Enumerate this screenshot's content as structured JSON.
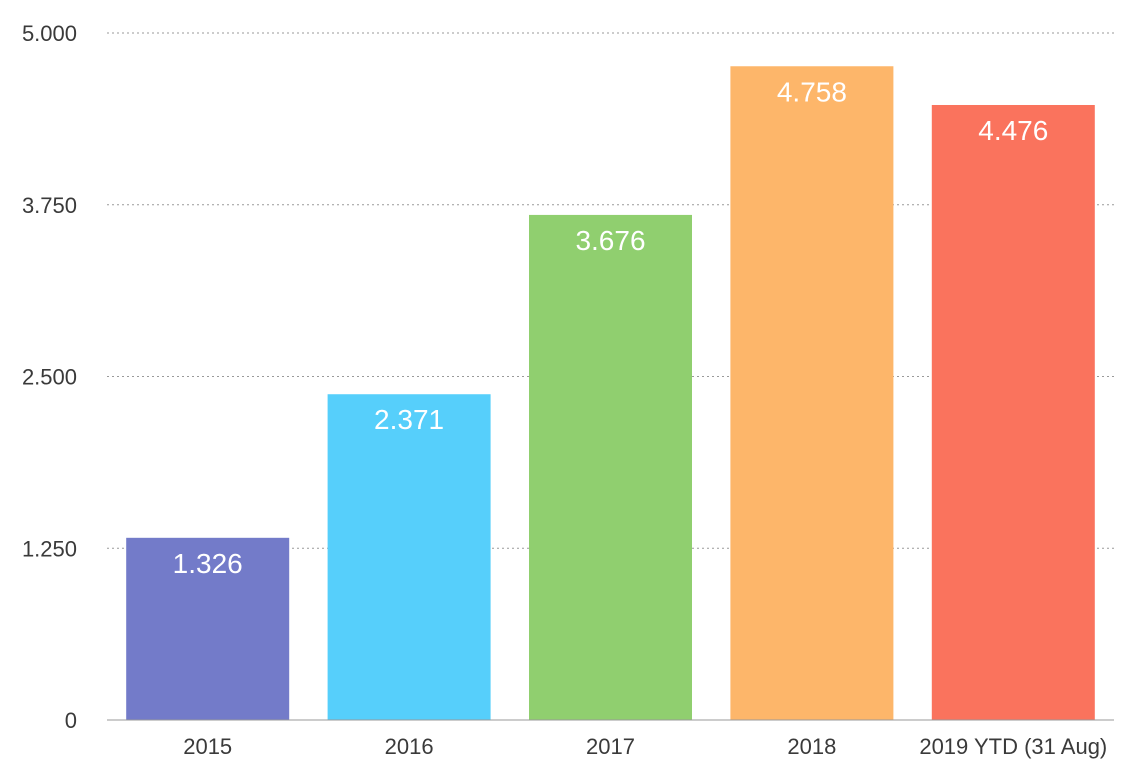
{
  "chart_data": {
    "type": "bar",
    "categories": [
      "2015",
      "2016",
      "2017",
      "2018",
      "2019 YTD (31 Aug)"
    ],
    "values": [
      1326,
      2371,
      3676,
      4758,
      4476
    ],
    "value_labels": [
      "1.326",
      "2.371",
      "3.676",
      "4.758",
      "4.476"
    ],
    "colors": [
      "#737bc9",
      "#56cffb",
      "#90cf6f",
      "#fdb66a",
      "#fa735d"
    ],
    "title": "",
    "xlabel": "",
    "ylabel": "",
    "ylim": [
      0,
      5000
    ],
    "yticks": [
      0,
      1250,
      2500,
      3750,
      5000
    ],
    "ytick_labels": [
      "0",
      "1.250",
      "2.500",
      "3.750",
      "5.000"
    ],
    "grid": true,
    "grid_style": "dotted",
    "legend": "none",
    "data_labels": "inside-top"
  }
}
